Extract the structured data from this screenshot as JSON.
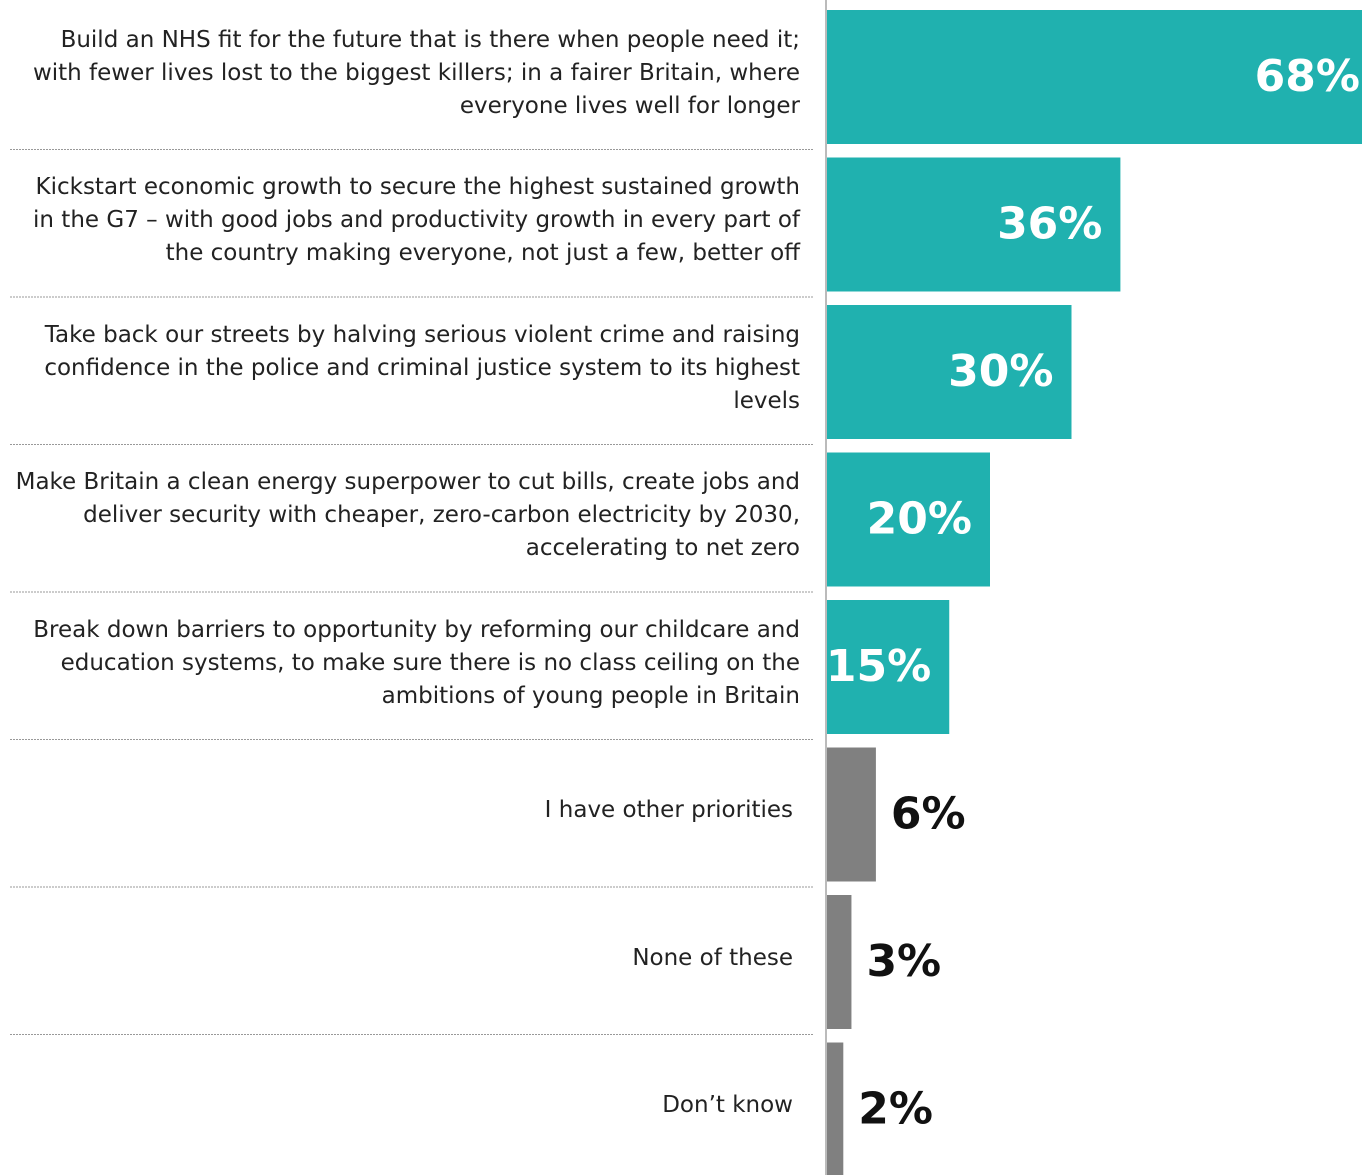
{
  "chart_data": {
    "type": "bar",
    "orientation": "horizontal",
    "categories": [
      "Build an NHS fit for the future that is there when people need it; with fewer lives lost to the biggest killers; in a fairer Britain, where everyone lives well for longer",
      "Kickstart economic growth to secure the highest sustained growth in the G7 – with good jobs and productivity growth in every part of the country making everyone, not just a few, better off",
      "Take back our streets by halving serious violent crime and raising confidence in the police and criminal justice system to its highest levels",
      "Make Britain a clean energy superpower to cut bills, create jobs and deliver security with cheaper, zero-carbon electricity by 2030, accelerating to net zero",
      "Break down barriers to opportunity by reforming our childcare and education systems, to make sure there is no class ceiling on the ambitions of young people in Britain",
      "I have other priorities",
      "None of these",
      "Don’t know"
    ],
    "values": [
      68,
      36,
      30,
      20,
      15,
      6,
      3,
      2
    ],
    "value_labels": [
      "68%",
      "36%",
      "30%",
      "20%",
      "15%",
      "6%",
      "3%",
      "2%"
    ],
    "colors": [
      "#20b1af",
      "#20b1af",
      "#20b1af",
      "#20b1af",
      "#20b1af",
      "#808080",
      "#808080",
      "#808080"
    ]
  }
}
